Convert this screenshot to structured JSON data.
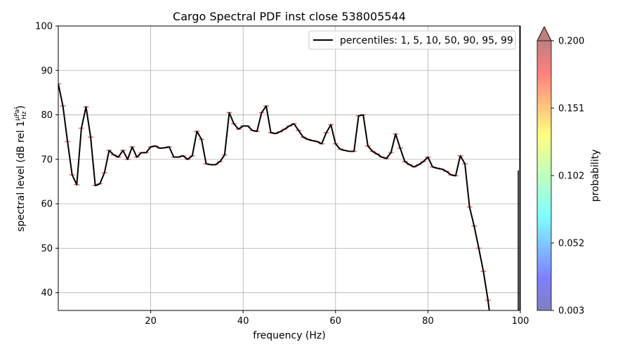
{
  "chart_data": {
    "type": "line",
    "title": "Cargo Spectral PDF inst close 538005544",
    "xlabel": "frequency (Hz)",
    "ylabel": "spectral level (dB rel 1",
    "ylabel_unit_num": "μPa²",
    "ylabel_unit_den": "Hz",
    "ylabel_close": ")",
    "xlim": [
      0,
      100
    ],
    "ylim": [
      36,
      100
    ],
    "x_ticks": [
      20,
      40,
      60,
      80,
      100
    ],
    "y_ticks": [
      40,
      50,
      60,
      70,
      80,
      90,
      100
    ],
    "grid": true,
    "legend_placement": "top-right",
    "series": [
      {
        "name": "percentiles: 1, 5, 10, 50, 90, 95, 99",
        "color": "#000000",
        "x": [
          0,
          1,
          2,
          3,
          4,
          5,
          6,
          7,
          8,
          9,
          10,
          11,
          12,
          13,
          14,
          15,
          16,
          17,
          18,
          19,
          20,
          21,
          22,
          23,
          24,
          25,
          26,
          27,
          28,
          29,
          30,
          31,
          32,
          33,
          34,
          35,
          36,
          37,
          38,
          39,
          40,
          41,
          42,
          43,
          44,
          45,
          46,
          47,
          48,
          49,
          50,
          51,
          52,
          53,
          54,
          55,
          56,
          57,
          58,
          59,
          60,
          61,
          62,
          63,
          64,
          65,
          66,
          67,
          68,
          69,
          70,
          71,
          72,
          73,
          74,
          75,
          76,
          77,
          78,
          79,
          80,
          81,
          82,
          83,
          84,
          85,
          86,
          87,
          88,
          89,
          90,
          91,
          92,
          93,
          94
        ],
        "y": [
          87,
          82,
          74,
          66.5,
          64.3,
          77,
          81.8,
          75,
          64.1,
          64.5,
          67,
          72,
          71,
          70.5,
          72,
          70,
          72.8,
          70.5,
          71.5,
          71.5,
          72.8,
          73,
          72.5,
          72.6,
          72.8,
          70.5,
          70.5,
          70.8,
          70,
          70.8,
          76.3,
          74.5,
          69,
          68.8,
          68.8,
          69.5,
          71,
          80.5,
          78,
          76.8,
          77.5,
          77.5,
          76.5,
          76.3,
          80.5,
          82,
          76,
          75.8,
          76.2,
          76.8,
          77.5,
          78,
          76.5,
          75,
          74.5,
          74.2,
          74,
          73.5,
          76,
          77.8,
          73.5,
          72.3,
          72,
          71.8,
          71.8,
          79.8,
          80,
          73,
          71.8,
          71.2,
          70.5,
          70.2,
          71.5,
          75.7,
          72.5,
          69.5,
          68.8,
          68.3,
          68.8,
          69.5,
          70.5,
          68.3,
          68,
          67.8,
          67.3,
          66.5,
          66.3,
          70.8,
          69,
          59.3,
          55,
          50,
          44.8,
          38.3,
          30
        ]
      }
    ],
    "colorbar": {
      "label": "probability",
      "ticks": [
        "0.003",
        "0.052",
        "0.102",
        "0.151",
        "0.200"
      ],
      "extend": "max",
      "colormap": "jet"
    }
  }
}
